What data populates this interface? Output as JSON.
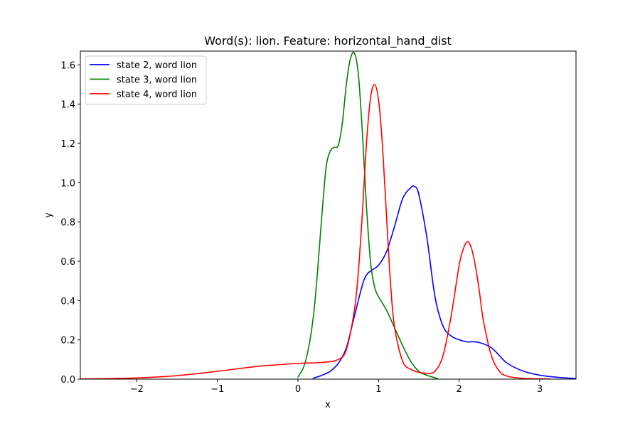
{
  "chart_data": {
    "type": "line",
    "title": "Word(s): lion. Feature: horizontal_hand_dist",
    "xlabel": "x",
    "ylabel": "y",
    "xlim": [
      -2.7,
      3.45
    ],
    "ylim": [
      0,
      1.67
    ],
    "xticks": [
      -2,
      -1,
      0,
      1,
      2,
      3
    ],
    "xtick_labels": [
      "−2",
      "−1",
      "0",
      "1",
      "2",
      "3"
    ],
    "yticks": [
      0.0,
      0.2,
      0.4,
      0.6,
      0.8,
      1.0,
      1.2,
      1.4,
      1.6
    ],
    "ytick_labels": [
      "0.0",
      "0.2",
      "0.4",
      "0.6",
      "0.8",
      "1.0",
      "1.2",
      "1.4",
      "1.6"
    ],
    "grid": false,
    "legend_position": "top-left",
    "series": [
      {
        "name": "state 2, word lion",
        "color": "#0000ff",
        "x": [
          0.19,
          0.3,
          0.4,
          0.5,
          0.6,
          0.7,
          0.8,
          0.85,
          0.9,
          1.0,
          1.1,
          1.2,
          1.3,
          1.4,
          1.45,
          1.5,
          1.6,
          1.7,
          1.8,
          1.9,
          2.0,
          2.1,
          2.2,
          2.3,
          2.4,
          2.5,
          2.6,
          2.8,
          3.0,
          3.2,
          3.45
        ],
        "y": [
          0.005,
          0.02,
          0.04,
          0.08,
          0.16,
          0.32,
          0.48,
          0.53,
          0.55,
          0.58,
          0.65,
          0.78,
          0.92,
          0.975,
          0.98,
          0.94,
          0.72,
          0.42,
          0.27,
          0.22,
          0.2,
          0.19,
          0.19,
          0.18,
          0.16,
          0.12,
          0.08,
          0.04,
          0.02,
          0.01,
          0.003
        ]
      },
      {
        "name": "state 3, word lion",
        "color": "#008000",
        "x": [
          0.0,
          0.1,
          0.2,
          0.3,
          0.35,
          0.4,
          0.45,
          0.5,
          0.55,
          0.6,
          0.65,
          0.7,
          0.75,
          0.8,
          0.85,
          0.9,
          0.95,
          1.0,
          1.1,
          1.2,
          1.3,
          1.4,
          1.5,
          1.6,
          1.73
        ],
        "y": [
          0.01,
          0.1,
          0.35,
          0.85,
          1.08,
          1.16,
          1.18,
          1.19,
          1.3,
          1.5,
          1.63,
          1.66,
          1.55,
          1.25,
          0.88,
          0.6,
          0.47,
          0.42,
          0.35,
          0.26,
          0.17,
          0.09,
          0.04,
          0.02,
          0.003
        ]
      },
      {
        "name": "state 4, word lion",
        "color": "#ff0000",
        "x": [
          -2.7,
          -2.5,
          -2.0,
          -1.5,
          -1.0,
          -0.5,
          0.0,
          0.3,
          0.5,
          0.6,
          0.7,
          0.75,
          0.8,
          0.85,
          0.9,
          0.95,
          1.0,
          1.05,
          1.1,
          1.15,
          1.2,
          1.3,
          1.4,
          1.5,
          1.6,
          1.7,
          1.8,
          1.9,
          2.0,
          2.05,
          2.1,
          2.15,
          2.2,
          2.25,
          2.3,
          2.4,
          2.5,
          2.6,
          2.8,
          3.13
        ],
        "y": [
          0.001,
          0.002,
          0.006,
          0.018,
          0.04,
          0.065,
          0.08,
          0.085,
          0.1,
          0.15,
          0.35,
          0.55,
          0.85,
          1.2,
          1.43,
          1.5,
          1.42,
          1.18,
          0.82,
          0.48,
          0.26,
          0.09,
          0.05,
          0.035,
          0.03,
          0.04,
          0.12,
          0.32,
          0.58,
          0.66,
          0.7,
          0.67,
          0.58,
          0.45,
          0.3,
          0.12,
          0.04,
          0.015,
          0.004,
          0.001
        ]
      }
    ]
  }
}
